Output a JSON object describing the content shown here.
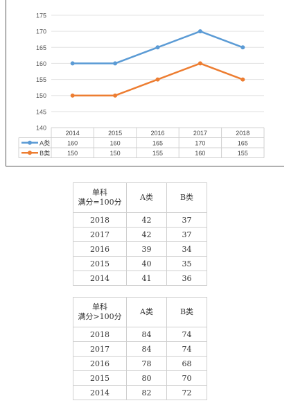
{
  "chart_data": {
    "type": "line",
    "categories": [
      "2014",
      "2015",
      "2016",
      "2017",
      "2018"
    ],
    "ylim": [
      140,
      175
    ],
    "yticks": [
      "140",
      "145",
      "150",
      "155",
      "160",
      "165",
      "170",
      "175"
    ],
    "grid": true,
    "legend": "data-table",
    "series": [
      {
        "name": "A类",
        "color": "#5b9bd5",
        "values": [
          160,
          160,
          165,
          170,
          165
        ]
      },
      {
        "name": "B类",
        "color": "#ed7d31",
        "values": [
          150,
          150,
          155,
          160,
          155
        ]
      }
    ]
  },
  "table1": {
    "header": {
      "line1": "单科",
      "line2": "满分=100分",
      "col2": "A类",
      "col3": "B类"
    },
    "rows": [
      {
        "year": "2018",
        "a": "42",
        "b": "37"
      },
      {
        "year": "2017",
        "a": "42",
        "b": "37"
      },
      {
        "year": "2016",
        "a": "39",
        "b": "34"
      },
      {
        "year": "2015",
        "a": "40",
        "b": "35"
      },
      {
        "year": "2014",
        "a": "41",
        "b": "36"
      }
    ]
  },
  "table2": {
    "header": {
      "line1": "单科",
      "line2": "满分>100分",
      "col2": "A类",
      "col3": "B类"
    },
    "rows": [
      {
        "year": "2018",
        "a": "84",
        "b": "74"
      },
      {
        "year": "2017",
        "a": "84",
        "b": "74"
      },
      {
        "year": "2016",
        "a": "78",
        "b": "68"
      },
      {
        "year": "2015",
        "a": "80",
        "b": "70"
      },
      {
        "year": "2014",
        "a": "82",
        "b": "72"
      }
    ]
  }
}
